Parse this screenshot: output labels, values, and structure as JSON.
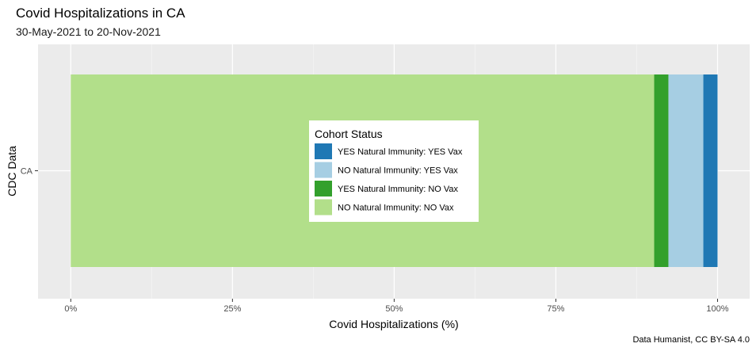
{
  "chart_data": {
    "type": "bar",
    "orientation": "horizontal",
    "stacked": true,
    "title": "Covid Hospitalizations in CA",
    "subtitle": "30-May-2021 to 20-Nov-2021",
    "xlabel": "Covid Hospitalizations (%)",
    "ylabel": "CDC Data",
    "caption": "Data Humanist, CC BY-SA 4.0",
    "categories": [
      "CA"
    ],
    "xlim": [
      0,
      100
    ],
    "x_ticks": [
      {
        "value": 0,
        "label": "0%"
      },
      {
        "value": 25,
        "label": "25%"
      },
      {
        "value": 50,
        "label": "50%"
      },
      {
        "value": 75,
        "label": "75%"
      },
      {
        "value": 100,
        "label": "100%"
      }
    ],
    "grid": true,
    "legend_title": "Cohort Status",
    "legend_position": "center",
    "series": [
      {
        "name": "NO Natural Immunity: NO Vax",
        "color": "#b2df8a",
        "values": [
          90.2
        ]
      },
      {
        "name": "YES Natural Immunity: NO Vax",
        "color": "#33a02c",
        "values": [
          2.2
        ]
      },
      {
        "name": "NO Natural Immunity: YES Vax",
        "color": "#a6cee3",
        "values": [
          5.4
        ]
      },
      {
        "name": "YES Natural Immunity: YES Vax",
        "color": "#1f78b4",
        "values": [
          2.2
        ]
      }
    ],
    "legend_order": [
      "YES Natural Immunity: YES Vax",
      "NO Natural Immunity: YES Vax",
      "YES Natural Immunity: NO Vax",
      "NO Natural Immunity: NO Vax"
    ]
  }
}
